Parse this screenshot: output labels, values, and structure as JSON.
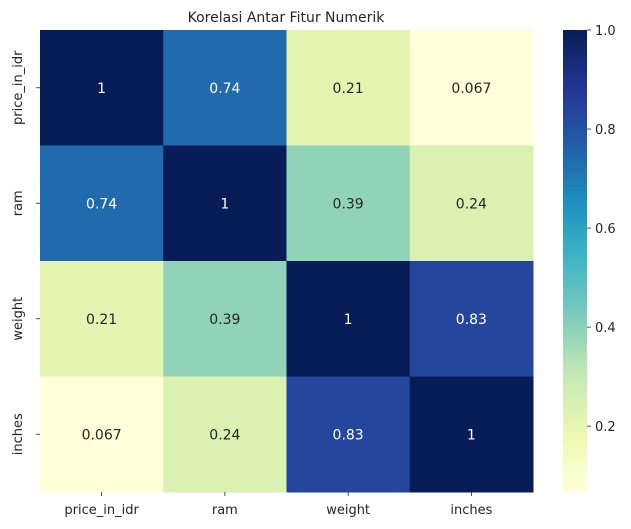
{
  "chart_data": {
    "type": "heatmap",
    "title": "Korelasi Antar Fitur Numerik",
    "x_labels": [
      "price_in_idr",
      "ram",
      "weight",
      "inches"
    ],
    "y_labels": [
      "price_in_idr",
      "ram",
      "weight",
      "inches"
    ],
    "values": [
      [
        1,
        0.74,
        0.21,
        0.067
      ],
      [
        0.74,
        1,
        0.39,
        0.24
      ],
      [
        0.21,
        0.39,
        1,
        0.83
      ],
      [
        0.067,
        0.24,
        0.83,
        1
      ]
    ],
    "value_labels": [
      [
        "1",
        "0.74",
        "0.21",
        "0.067"
      ],
      [
        "0.74",
        "1",
        "0.39",
        "0.24"
      ],
      [
        "0.21",
        "0.39",
        "1",
        "0.83"
      ],
      [
        "0.067",
        "0.24",
        "0.83",
        "1"
      ]
    ],
    "colormap": "YlGnBu",
    "colorbar": {
      "min": 0.067,
      "max": 1.0,
      "ticks": [
        0.2,
        0.4,
        0.6,
        0.8,
        1.0
      ],
      "tick_labels": [
        "0.2",
        "0.4",
        "0.6",
        "0.8",
        "1.0"
      ]
    }
  }
}
